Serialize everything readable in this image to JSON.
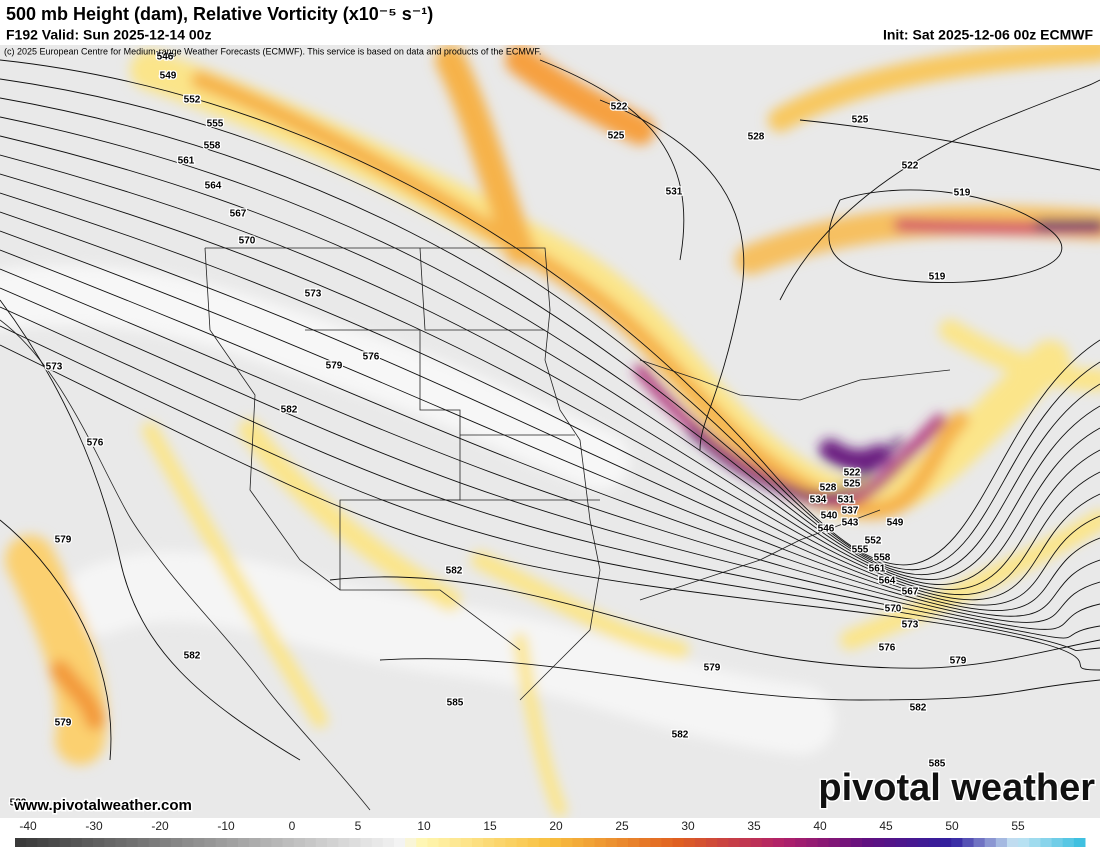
{
  "header": {
    "title": "500 mb Height (dam), Relative Vorticity (x10⁻⁵ s⁻¹)",
    "valid": "F192 Valid: Sun 2025-12-14 00z",
    "init": "Init: Sat 2025-12-06 00z ECMWF",
    "copyright": "(c) 2025 European Centre for Medium-range Weather Forecasts (ECMWF). This service is based on data and products of the ECMWF."
  },
  "map": {
    "contour_labels": [
      546,
      549,
      552,
      555,
      558,
      561,
      564,
      567,
      570,
      573,
      576,
      579,
      582,
      573,
      576,
      579,
      582,
      579,
      582,
      585,
      582,
      579,
      576,
      573,
      570,
      567,
      564,
      561,
      558,
      555,
      552,
      549,
      546,
      543,
      540,
      537,
      534,
      531,
      528,
      525,
      522,
      579,
      582,
      585,
      582,
      522,
      525,
      528,
      531,
      525,
      522,
      519,
      519
    ]
  },
  "footer": {
    "website": "www.pivotalweather.com",
    "brand": "pivotal weather"
  },
  "colorbar": {
    "ticks": [
      -40,
      -30,
      -20,
      -10,
      0,
      5,
      10,
      15,
      20,
      25,
      30,
      35,
      40,
      45,
      50,
      55
    ]
  }
}
